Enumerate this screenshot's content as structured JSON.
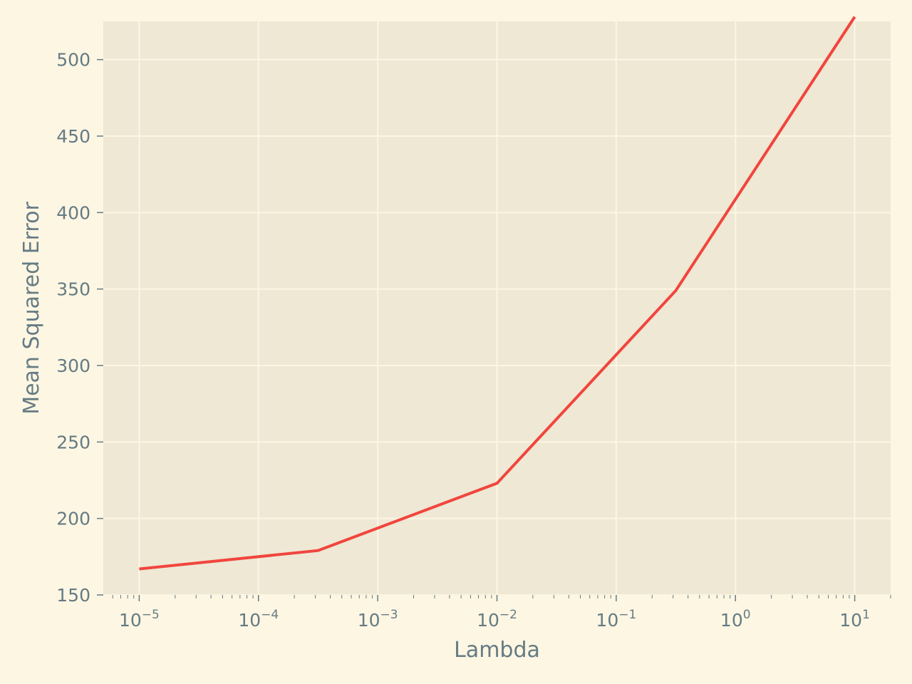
{
  "chart_data": {
    "type": "line",
    "title": "",
    "xlabel": "Lambda",
    "ylabel": "Mean Squared Error",
    "xscale": "log",
    "xlim": [
      5e-06,
      20
    ],
    "ylim": [
      150,
      525
    ],
    "grid": true,
    "legend": "none",
    "x_ticks": [
      {
        "value": 1e-05,
        "base": "10",
        "exp": "−5"
      },
      {
        "value": 0.0001,
        "base": "10",
        "exp": "−4"
      },
      {
        "value": 0.001,
        "base": "10",
        "exp": "−3"
      },
      {
        "value": 0.01,
        "base": "10",
        "exp": "−2"
      },
      {
        "value": 0.1,
        "base": "10",
        "exp": "−1"
      },
      {
        "value": 1,
        "base": "10",
        "exp": "0"
      },
      {
        "value": 10,
        "base": "10",
        "exp": "1"
      }
    ],
    "y_ticks": [
      150,
      200,
      250,
      300,
      350,
      400,
      450,
      500
    ],
    "series": [
      {
        "color": "#f1453d",
        "x": [
          1e-05,
          0.000316,
          0.01,
          0.316,
          10
        ],
        "y": [
          167,
          179,
          223,
          349,
          528
        ]
      }
    ]
  },
  "colors": {
    "background": "#fdf6e3",
    "plot_area": "#eee8d5",
    "grid": "#fdf6e3",
    "text": "#657b83",
    "line": "#f1453d"
  }
}
